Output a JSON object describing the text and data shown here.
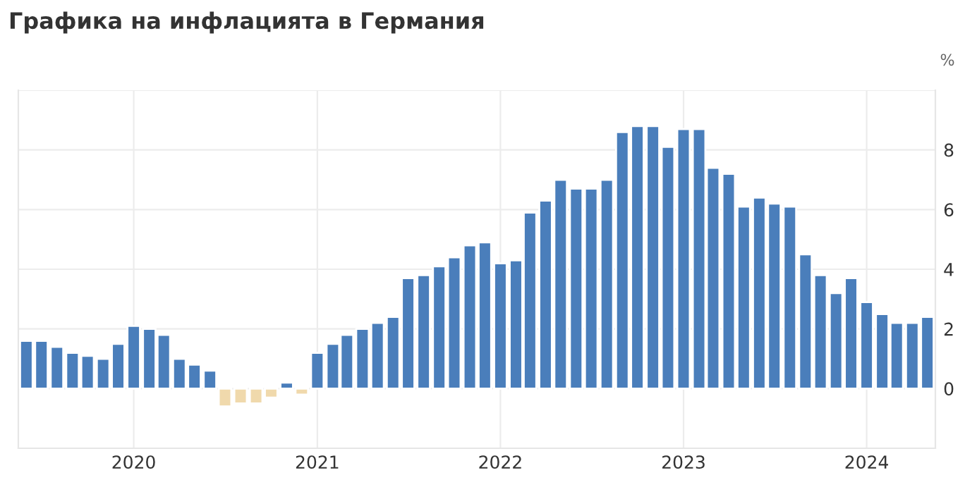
{
  "chart_data": {
    "type": "bar",
    "title": "Графика на инфлацията в Германия",
    "ylabel": "%",
    "x": [
      "2019-06",
      "2019-07",
      "2019-08",
      "2019-09",
      "2019-10",
      "2019-11",
      "2019-12",
      "2020-01",
      "2020-02",
      "2020-03",
      "2020-04",
      "2020-05",
      "2020-06",
      "2020-07",
      "2020-08",
      "2020-09",
      "2020-10",
      "2020-11",
      "2020-12",
      "2021-01",
      "2021-02",
      "2021-03",
      "2021-04",
      "2021-05",
      "2021-06",
      "2021-07",
      "2021-08",
      "2021-09",
      "2021-10",
      "2021-11",
      "2021-12",
      "2022-01",
      "2022-02",
      "2022-03",
      "2022-04",
      "2022-05",
      "2022-06",
      "2022-07",
      "2022-08",
      "2022-09",
      "2022-10",
      "2022-11",
      "2022-12",
      "2023-01",
      "2023-02",
      "2023-03",
      "2023-04",
      "2023-05",
      "2023-06",
      "2023-07",
      "2023-08",
      "2023-09",
      "2023-10",
      "2023-11",
      "2023-12",
      "2024-01",
      "2024-02",
      "2024-03",
      "2024-04",
      "2024-05"
    ],
    "values": [
      1.6,
      1.6,
      1.4,
      1.2,
      1.1,
      1.0,
      1.5,
      2.1,
      2.0,
      1.8,
      1.0,
      0.8,
      0.6,
      -0.6,
      -0.5,
      -0.5,
      -0.3,
      0.2,
      -0.2,
      1.2,
      1.5,
      1.8,
      2.0,
      2.2,
      2.4,
      3.7,
      3.8,
      4.1,
      4.4,
      4.8,
      4.9,
      4.2,
      4.3,
      5.9,
      6.3,
      7.0,
      6.7,
      6.7,
      7.0,
      8.6,
      8.8,
      8.8,
      8.1,
      8.7,
      8.7,
      7.4,
      7.2,
      6.1,
      6.4,
      6.2,
      6.1,
      4.5,
      3.8,
      3.2,
      3.7,
      2.9,
      2.5,
      2.2,
      2.2,
      2.4
    ],
    "colors": [
      "#4a7ebb",
      "#4a7ebb",
      "#4a7ebb",
      "#4a7ebb",
      "#4a7ebb",
      "#4a7ebb",
      "#4a7ebb",
      "#4a7ebb",
      "#4a7ebb",
      "#4a7ebb",
      "#4a7ebb",
      "#4a7ebb",
      "#4a7ebb",
      "#f0d9ac",
      "#f0d9ac",
      "#f0d9ac",
      "#f0d9ac",
      "#4a7ebb",
      "#f0d9ac",
      "#4a7ebb",
      "#4a7ebb",
      "#4a7ebb",
      "#4a7ebb",
      "#4a7ebb",
      "#4a7ebb",
      "#4a7ebb",
      "#4a7ebb",
      "#4a7ebb",
      "#4a7ebb",
      "#4a7ebb",
      "#4a7ebb",
      "#4a7ebb",
      "#4a7ebb",
      "#4a7ebb",
      "#4a7ebb",
      "#4a7ebb",
      "#4a7ebb",
      "#4a7ebb",
      "#4a7ebb",
      "#4a7ebb",
      "#4a7ebb",
      "#4a7ebb",
      "#4a7ebb",
      "#4a7ebb",
      "#4a7ebb",
      "#4a7ebb",
      "#4a7ebb",
      "#4a7ebb",
      "#4a7ebb",
      "#4a7ebb",
      "#4a7ebb",
      "#4a7ebb",
      "#4a7ebb",
      "#4a7ebb",
      "#4a7ebb",
      "#4a7ebb",
      "#4a7ebb",
      "#4a7ebb",
      "#4a7ebb",
      "#4a7ebb"
    ],
    "xlim": [
      "2019-05-16",
      "2024-05-17"
    ],
    "xticks": [
      "2020",
      "2021",
      "2022",
      "2023",
      "2024"
    ],
    "ylim": [
      -2,
      10
    ],
    "yticks": [
      {
        "value": -2,
        "label": null
      },
      0,
      2,
      4,
      6,
      8,
      {
        "value": 10,
        "label": null
      }
    ],
    "grid": true
  }
}
